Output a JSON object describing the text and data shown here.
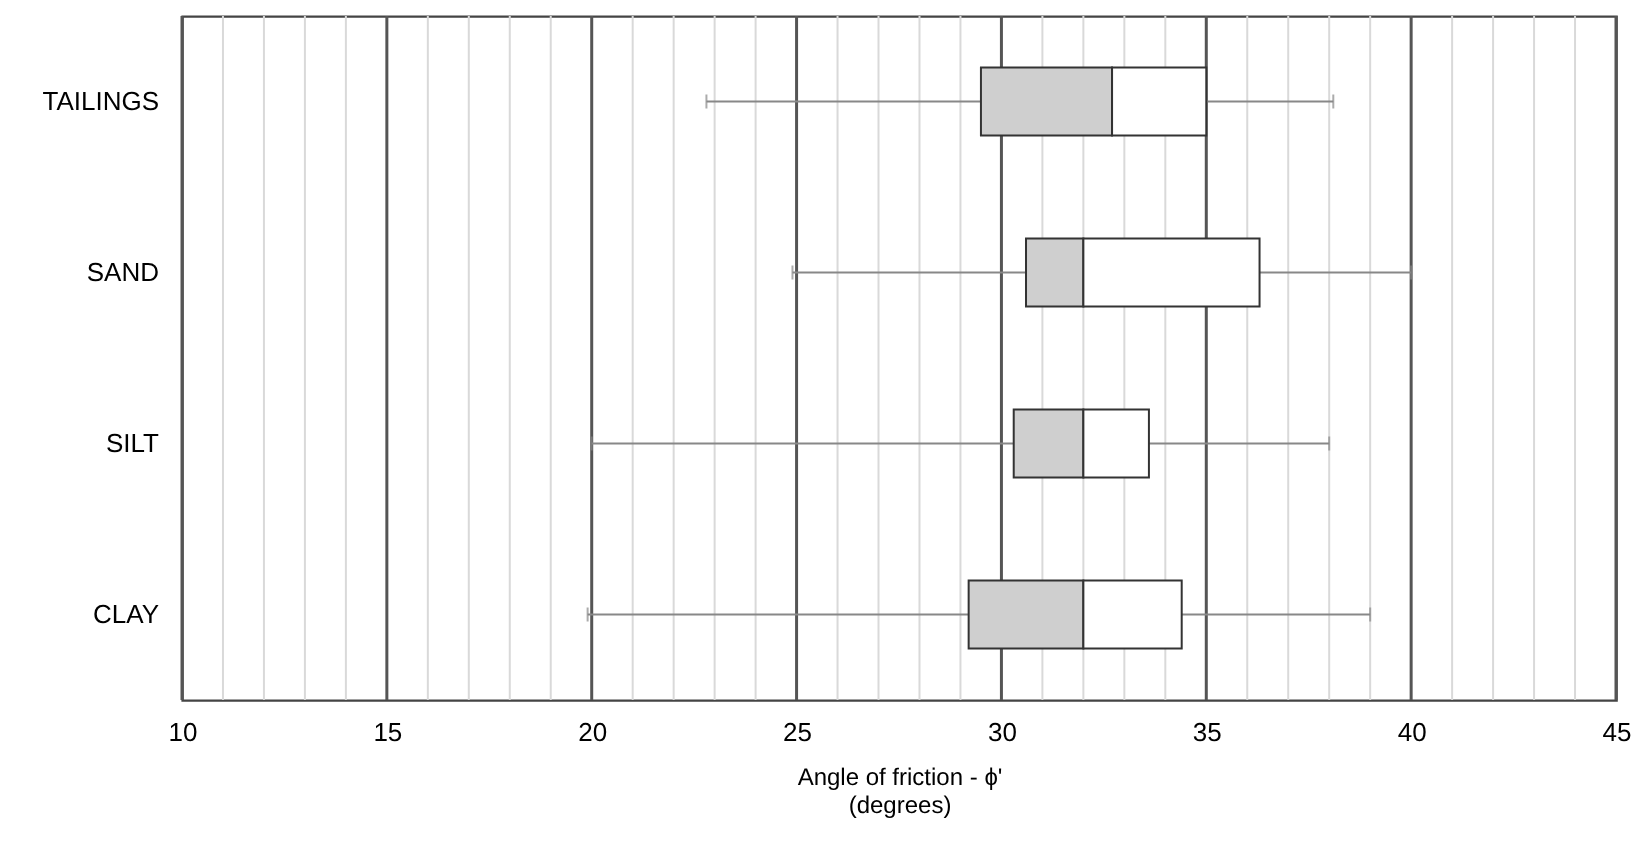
{
  "chart_data": {
    "type": "box",
    "orientation": "horizontal",
    "xlabel": "Angle of friction - ϕ'\n(degrees)",
    "categories": [
      "TAILINGS",
      "SAND",
      "SILT",
      "CLAY"
    ],
    "boxes": [
      {
        "low": 22.8,
        "q1": 29.5,
        "median": 32.7,
        "q3": 35.0,
        "high": 38.1
      },
      {
        "low": 24.9,
        "q1": 30.6,
        "median": 32.0,
        "q3": 36.3,
        "high": 40.0
      },
      {
        "low": 20.0,
        "q1": 30.3,
        "median": 32.0,
        "q3": 33.6,
        "high": 38.0
      },
      {
        "low": 19.9,
        "q1": 29.2,
        "median": 32.0,
        "q3": 34.4,
        "high": 39.0
      }
    ],
    "xlim": [
      10,
      45
    ],
    "xticks": [
      10,
      {
        "value": 11,
        "label": null
      },
      {
        "value": 12,
        "label": null
      },
      {
        "value": 13,
        "label": null
      },
      {
        "value": 14,
        "label": null
      },
      15,
      {
        "value": 16,
        "label": null
      },
      {
        "value": 17,
        "label": null
      },
      {
        "value": 18,
        "label": null
      },
      {
        "value": 19,
        "label": null
      },
      20,
      {
        "value": 21,
        "label": null
      },
      {
        "value": 22,
        "label": null
      },
      {
        "value": 23,
        "label": null
      },
      {
        "value": 24,
        "label": null
      },
      25,
      {
        "value": 26,
        "label": null
      },
      {
        "value": 27,
        "label": null
      },
      {
        "value": 28,
        "label": null
      },
      {
        "value": 29,
        "label": null
      },
      30,
      {
        "value": 31,
        "label": null
      },
      {
        "value": 32,
        "label": null
      },
      {
        "value": 33,
        "label": null
      },
      {
        "value": 34,
        "label": null
      },
      35,
      {
        "value": 36,
        "label": null
      },
      {
        "value": 37,
        "label": null
      },
      {
        "value": 38,
        "label": null
      },
      {
        "value": 39,
        "label": null
      },
      40,
      {
        "value": 41,
        "label": null
      },
      {
        "value": 42,
        "label": null
      },
      {
        "value": 43,
        "label": null
      },
      {
        "value": 44,
        "label": null
      },
      45
    ],
    "grid": true
  }
}
